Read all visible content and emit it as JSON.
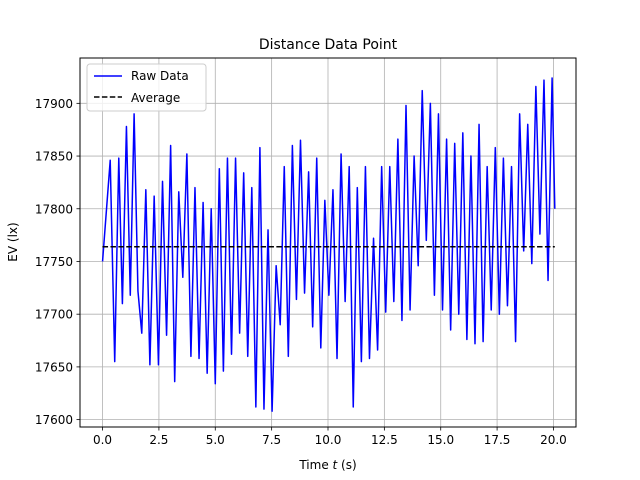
{
  "chart_data": {
    "type": "line",
    "title": "Distance Data Point",
    "xlabel_prefix": "Time ",
    "xlabel_var": "t",
    "xlabel_suffix": " (s)",
    "ylabel": "EV (lx)",
    "xlim": [
      -1.0,
      21.0
    ],
    "ylim": [
      17593,
      17943
    ],
    "xticks": [
      0.0,
      2.5,
      5.0,
      7.5,
      10.0,
      12.5,
      15.0,
      17.5,
      20.0
    ],
    "xtick_labels": [
      "0.0",
      "2.5",
      "5.0",
      "7.5",
      "10.0",
      "12.5",
      "15.0",
      "17.5",
      "20.0"
    ],
    "yticks": [
      17600,
      17650,
      17700,
      17750,
      17800,
      17850,
      17900
    ],
    "ytick_labels": [
      "17600",
      "17650",
      "17700",
      "17750",
      "17800",
      "17850",
      "17900"
    ],
    "grid": true,
    "legend_position": "upper-left",
    "series": [
      {
        "name": "Raw Data",
        "style": "solid",
        "color": "#0000ff",
        "x": [
          0.0,
          0.34,
          0.54,
          0.72,
          0.88,
          1.06,
          1.23,
          1.4,
          1.57,
          1.74,
          1.92,
          2.1,
          2.29,
          2.48,
          2.66,
          2.84,
          3.02,
          3.2,
          3.38,
          3.56,
          3.74,
          3.92,
          4.1,
          4.28,
          4.46,
          4.64,
          4.82,
          5.0,
          5.18,
          5.36,
          5.54,
          5.72,
          5.9,
          6.08,
          6.26,
          6.44,
          6.62,
          6.8,
          6.98,
          7.16,
          7.34,
          7.52,
          7.7,
          7.88,
          8.06,
          8.24,
          8.42,
          8.6,
          8.78,
          8.96,
          9.14,
          9.32,
          9.5,
          9.68,
          9.86,
          10.04,
          10.22,
          10.4,
          10.58,
          10.76,
          10.94,
          11.12,
          11.3,
          11.48,
          11.66,
          11.84,
          12.02,
          12.2,
          12.38,
          12.56,
          12.74,
          12.92,
          13.1,
          13.28,
          13.46,
          13.64,
          13.82,
          14.0,
          14.18,
          14.36,
          14.54,
          14.72,
          14.9,
          15.08,
          15.26,
          15.44,
          15.62,
          15.8,
          15.98,
          16.16,
          16.34,
          16.52,
          16.7,
          16.88,
          17.06,
          17.24,
          17.42,
          17.6,
          17.78,
          17.96,
          18.14,
          18.32,
          18.5,
          18.68,
          18.86,
          19.04,
          19.22,
          19.4,
          19.58,
          19.76,
          19.94,
          20.06
        ],
        "y": [
          17750,
          17846,
          17655,
          17848,
          17710,
          17878,
          17718,
          17890,
          17722,
          17682,
          17818,
          17652,
          17812,
          17652,
          17826,
          17680,
          17860,
          17636,
          17816,
          17735,
          17852,
          17660,
          17820,
          17658,
          17806,
          17644,
          17800,
          17634,
          17838,
          17646,
          17848,
          17662,
          17848,
          17682,
          17834,
          17660,
          17820,
          17612,
          17858,
          17610,
          17780,
          17608,
          17746,
          17690,
          17840,
          17660,
          17860,
          17714,
          17865,
          17720,
          17835,
          17688,
          17848,
          17668,
          17808,
          17718,
          17818,
          17658,
          17852,
          17712,
          17840,
          17612,
          17820,
          17655,
          17840,
          17658,
          17772,
          17666,
          17840,
          17702,
          17840,
          17712,
          17866,
          17694,
          17898,
          17704,
          17850,
          17746,
          17912,
          17770,
          17900,
          17718,
          17890,
          17704,
          17866,
          17685,
          17862,
          17700,
          17872,
          17676,
          17850,
          17672,
          17880,
          17674,
          17840,
          17704,
          17858,
          17700,
          17848,
          17708,
          17840,
          17674,
          17890,
          17760,
          17880,
          17748,
          17916,
          17776,
          17922,
          17732,
          17924,
          17800
        ]
      },
      {
        "name": "Average",
        "style": "dashed",
        "color": "#000000",
        "x": [
          0.0,
          20.06
        ],
        "y": [
          17764,
          17764
        ]
      }
    ]
  }
}
